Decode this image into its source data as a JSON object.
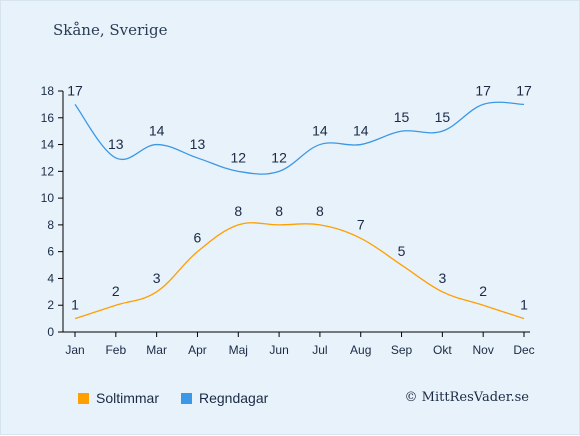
{
  "header": {
    "title": "Skåne, Sverige"
  },
  "footer": {
    "credit": "© MittResVader.se"
  },
  "chart_data": {
    "type": "line",
    "categories": [
      "Jan",
      "Feb",
      "Mar",
      "Apr",
      "Maj",
      "Jun",
      "Jul",
      "Aug",
      "Sep",
      "Okt",
      "Nov",
      "Dec"
    ],
    "ylim": [
      0,
      18
    ],
    "yticks": [
      0,
      2,
      4,
      6,
      8,
      10,
      12,
      14,
      16,
      18
    ],
    "grid": false,
    "legend_position": "bottom-left",
    "series": [
      {
        "name": "Soltimmar",
        "color": "#ff9f00",
        "values": [
          1,
          2,
          3,
          6,
          8,
          8,
          8,
          7,
          5,
          3,
          2,
          1
        ]
      },
      {
        "name": "Regndagar",
        "color": "#3a98e6",
        "values": [
          17,
          13,
          14,
          13,
          12,
          12,
          14,
          14,
          15,
          15,
          17,
          17
        ]
      }
    ]
  }
}
